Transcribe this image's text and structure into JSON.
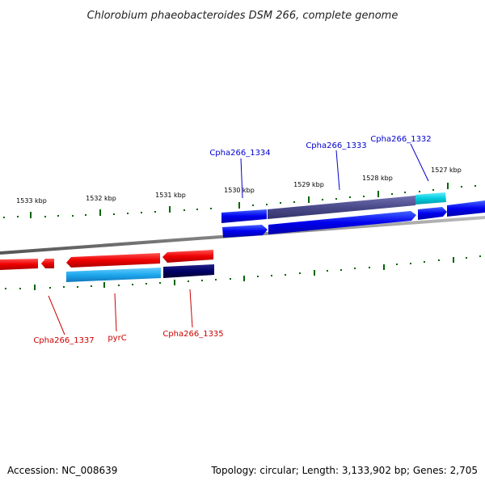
{
  "title": "Chlorobium phaeobacteroides DSM 266, complete genome",
  "footer": {
    "accession": "Accession: NC_008639",
    "summary": "Topology: circular; Length: 3,133,902 bp; Genes: 2,705"
  },
  "scale": {
    "tick_labels": [
      "1533 kbp",
      "1532 kbp",
      "1531 kbp",
      "1530 kbp",
      "1529 kbp",
      "1528 kbp",
      "1527 kbp"
    ]
  },
  "genes_top": [
    {
      "name": "Cpha266_1334",
      "color": "#0000cc"
    },
    {
      "name": "Cpha266_1333",
      "color": "#0000cc"
    },
    {
      "name": "Cpha266_1332",
      "color": "#0000cc"
    }
  ],
  "genes_bottom": [
    {
      "name": "Cpha266_1337",
      "color": "#cc0000"
    },
    {
      "name": "pyrC",
      "color": "#cc0000"
    },
    {
      "name": "Cpha266_1335",
      "color": "#cc0000"
    }
  ],
  "colors": {
    "forward_gene": "#0000ee",
    "reverse_gene": "#ee0000",
    "rna_cyan": "#00ccee",
    "light_blue": "#22aaee",
    "dark_navy": "#000066",
    "slate_purple": "#4a4a8a",
    "tick_green": "#006600",
    "backbone": "#888888"
  }
}
